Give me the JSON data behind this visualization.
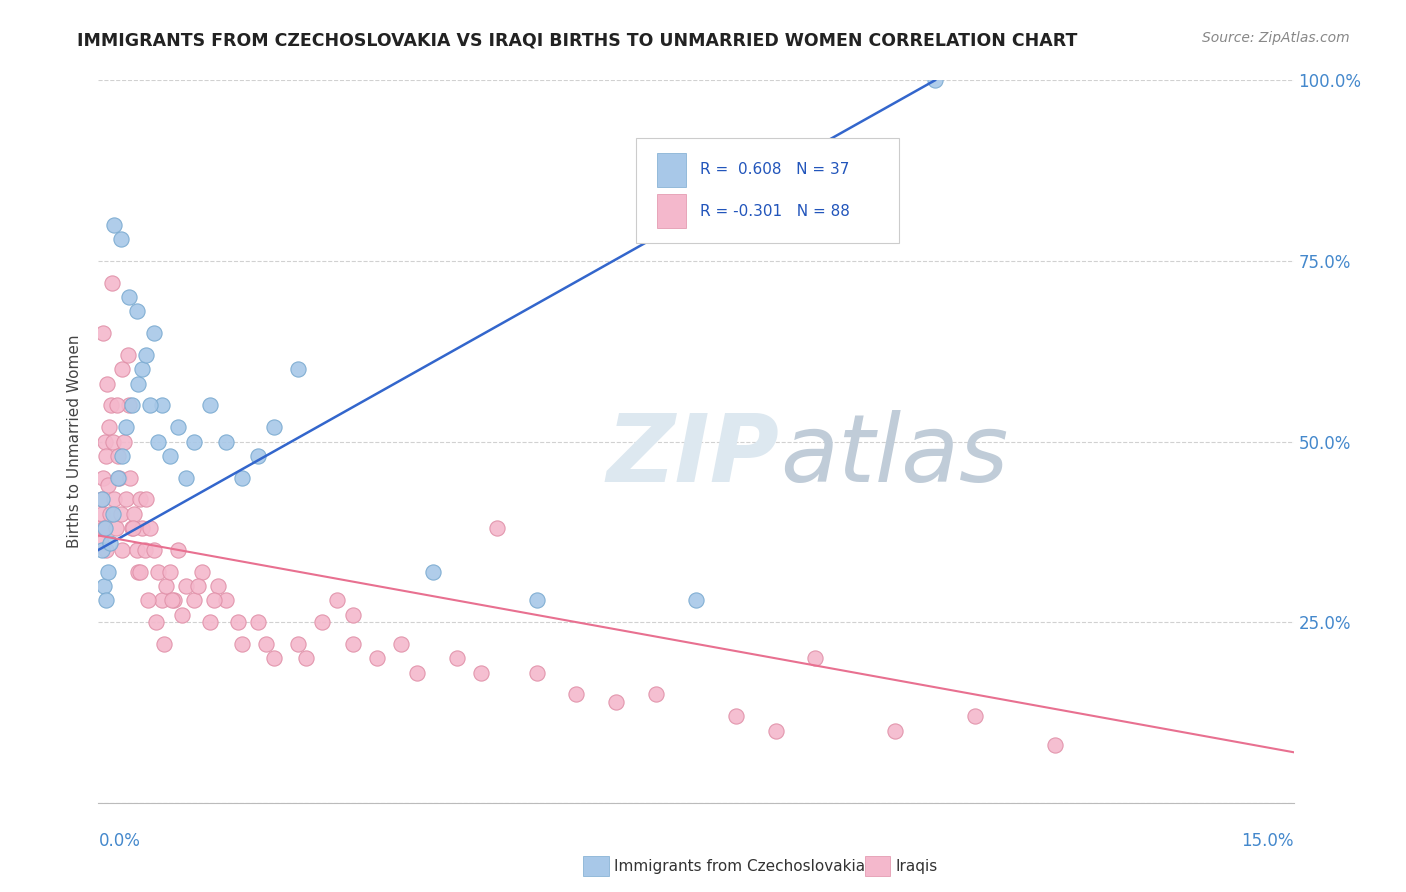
{
  "title": "IMMIGRANTS FROM CZECHOSLOVAKIA VS IRAQI BIRTHS TO UNMARRIED WOMEN CORRELATION CHART",
  "source": "Source: ZipAtlas.com",
  "xmin": 0.0,
  "xmax": 15.0,
  "ymin": 0.0,
  "ymax": 100.0,
  "legend_blue_label": "Immigrants from Czechoslovakia",
  "legend_pink_label": "Iraqis",
  "R_blue": "0.608",
  "N_blue": "37",
  "R_pink": "-0.301",
  "N_pink": "88",
  "blue_dot_color": "#a8c8e8",
  "blue_dot_edge": "#7aaad0",
  "pink_dot_color": "#f4b8cc",
  "pink_dot_edge": "#e090a8",
  "blue_line_color": "#3366cc",
  "pink_line_color": "#e87090",
  "background_color": "#ffffff",
  "watermark_color": "#dde8f0",
  "grid_color": "#cccccc",
  "axis_label_color": "#4488cc",
  "ylabel_text": "Births to Unmarried Women",
  "blue_scatter_x": [
    0.05,
    0.07,
    0.1,
    0.12,
    0.05,
    0.08,
    0.15,
    0.18,
    0.25,
    0.3,
    0.35,
    0.42,
    0.5,
    0.55,
    0.6,
    0.7,
    0.75,
    0.8,
    0.9,
    1.0,
    1.1,
    1.2,
    1.4,
    1.6,
    1.8,
    2.0,
    2.2,
    2.5,
    0.2,
    0.28,
    0.38,
    0.48,
    0.65,
    4.2,
    5.5,
    7.5,
    10.5
  ],
  "blue_scatter_y": [
    35,
    30,
    28,
    32,
    42,
    38,
    36,
    40,
    45,
    48,
    52,
    55,
    58,
    60,
    62,
    65,
    50,
    55,
    48,
    52,
    45,
    50,
    55,
    50,
    45,
    48,
    52,
    60,
    80,
    78,
    70,
    68,
    55,
    32,
    28,
    28,
    100
  ],
  "pink_scatter_x": [
    0.02,
    0.03,
    0.04,
    0.05,
    0.06,
    0.07,
    0.08,
    0.09,
    0.1,
    0.12,
    0.13,
    0.15,
    0.16,
    0.18,
    0.2,
    0.22,
    0.24,
    0.26,
    0.28,
    0.3,
    0.32,
    0.35,
    0.38,
    0.4,
    0.42,
    0.45,
    0.48,
    0.5,
    0.52,
    0.55,
    0.58,
    0.6,
    0.65,
    0.7,
    0.75,
    0.8,
    0.85,
    0.9,
    0.95,
    1.0,
    1.1,
    1.2,
    1.3,
    1.4,
    1.5,
    1.6,
    1.8,
    2.0,
    2.2,
    2.5,
    2.8,
    3.0,
    3.2,
    3.5,
    4.0,
    4.5,
    5.0,
    5.5,
    6.0,
    7.0,
    8.0,
    9.0,
    10.0,
    11.0,
    12.0,
    0.06,
    0.11,
    0.17,
    0.23,
    0.29,
    0.37,
    0.44,
    0.52,
    0.62,
    0.72,
    0.82,
    0.92,
    1.05,
    1.25,
    1.45,
    1.75,
    2.1,
    2.6,
    3.2,
    3.8,
    4.8,
    6.5,
    8.5
  ],
  "pink_scatter_y": [
    38,
    36,
    40,
    42,
    45,
    38,
    50,
    35,
    48,
    44,
    52,
    40,
    55,
    50,
    42,
    38,
    48,
    45,
    40,
    35,
    50,
    42,
    55,
    45,
    38,
    40,
    35,
    32,
    42,
    38,
    35,
    42,
    38,
    35,
    32,
    28,
    30,
    32,
    28,
    35,
    30,
    28,
    32,
    25,
    30,
    28,
    22,
    25,
    20,
    22,
    25,
    28,
    22,
    20,
    18,
    20,
    38,
    18,
    15,
    15,
    12,
    20,
    10,
    12,
    8,
    65,
    58,
    72,
    55,
    60,
    62,
    38,
    32,
    28,
    25,
    22,
    28,
    26,
    30,
    28,
    25,
    22,
    20,
    26,
    22,
    18,
    14,
    10
  ]
}
